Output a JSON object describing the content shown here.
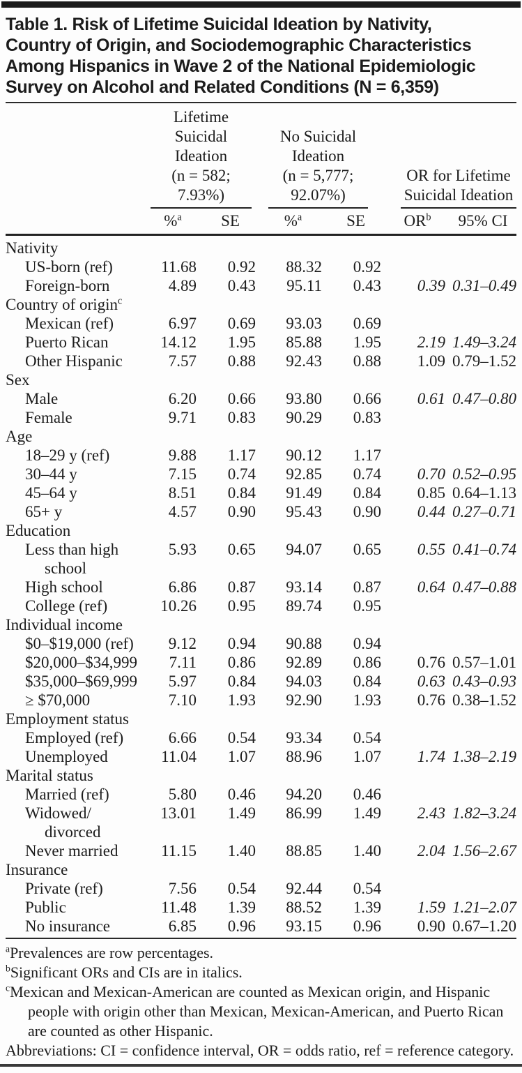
{
  "colors": {
    "ink": "#1c1c1c",
    "background": "#fdfdfd",
    "rule": "#2a2a2a"
  },
  "title": "Table 1. Risk of Lifetime Suicidal Ideation by Nativity,\nCountry of Origin, and Sociodemographic Characteristics\nAmong Hispanics in Wave 2 of the National Epidemiologic\nSurvey on Alcohol and Related Conditions (N = 6,359)",
  "header": {
    "group1": "Lifetime\nSuicidal\nIdeation\n(n = 582; 7.93%)",
    "group2": "No Suicidal\nIdeation\n(n = 5,777;\n92.07%)",
    "group3": "OR for Lifetime\nSuicidal Ideation",
    "subcols": [
      {
        "label": "%",
        "sup": "a"
      },
      {
        "label": "SE",
        "sup": ""
      },
      {
        "label": "%",
        "sup": "a"
      },
      {
        "label": "SE",
        "sup": ""
      },
      {
        "label": "OR",
        "sup": "b"
      },
      {
        "label": "95% CI",
        "sup": ""
      }
    ]
  },
  "rows": [
    {
      "type": "section",
      "label": "Nativity",
      "sup": ""
    },
    {
      "type": "data",
      "label": "US-born (ref)",
      "v": [
        "11.68",
        "0.92",
        "88.32",
        "0.92",
        "",
        ""
      ],
      "sig": false
    },
    {
      "type": "data",
      "label": "Foreign-born",
      "v": [
        "4.89",
        "0.43",
        "95.11",
        "0.43",
        "0.39",
        "0.31–0.49"
      ],
      "sig": true
    },
    {
      "type": "section",
      "label": "Country of origin",
      "sup": "c"
    },
    {
      "type": "data",
      "label": "Mexican (ref)",
      "v": [
        "6.97",
        "0.69",
        "93.03",
        "0.69",
        "",
        ""
      ],
      "sig": false
    },
    {
      "type": "data",
      "label": "Puerto Rican",
      "v": [
        "14.12",
        "1.95",
        "85.88",
        "1.95",
        "2.19",
        "1.49–3.24"
      ],
      "sig": true
    },
    {
      "type": "data",
      "label": "Other Hispanic",
      "v": [
        "7.57",
        "0.88",
        "92.43",
        "0.88",
        "1.09",
        "0.79–1.52"
      ],
      "sig": false
    },
    {
      "type": "section",
      "label": "Sex",
      "sup": ""
    },
    {
      "type": "data",
      "label": "Male",
      "v": [
        "6.20",
        "0.66",
        "93.80",
        "0.66",
        "0.61",
        "0.47–0.80"
      ],
      "sig": true
    },
    {
      "type": "data",
      "label": "Female",
      "v": [
        "9.71",
        "0.83",
        "90.29",
        "0.83",
        "",
        ""
      ],
      "sig": false
    },
    {
      "type": "section",
      "label": "Age",
      "sup": ""
    },
    {
      "type": "data",
      "label": "18–29 y (ref)",
      "v": [
        "9.88",
        "1.17",
        "90.12",
        "1.17",
        "",
        ""
      ],
      "sig": false
    },
    {
      "type": "data",
      "label": "30–44 y",
      "v": [
        "7.15",
        "0.74",
        "92.85",
        "0.74",
        "0.70",
        "0.52–0.95"
      ],
      "sig": true
    },
    {
      "type": "data",
      "label": "45–64 y",
      "v": [
        "8.51",
        "0.84",
        "91.49",
        "0.84",
        "0.85",
        "0.64–1.13"
      ],
      "sig": false
    },
    {
      "type": "data",
      "label": "65+ y",
      "v": [
        "4.57",
        "0.90",
        "95.43",
        "0.90",
        "0.44",
        "0.27–0.71"
      ],
      "sig": true
    },
    {
      "type": "section",
      "label": "Education",
      "sup": ""
    },
    {
      "type": "data",
      "label": "Less than high\nschool",
      "v": [
        "5.93",
        "0.65",
        "94.07",
        "0.65",
        "0.55",
        "0.41–0.74"
      ],
      "sig": true
    },
    {
      "type": "data",
      "label": "High school",
      "v": [
        "6.86",
        "0.87",
        "93.14",
        "0.87",
        "0.64",
        "0.47–0.88"
      ],
      "sig": true
    },
    {
      "type": "data",
      "label": "College (ref)",
      "v": [
        "10.26",
        "0.95",
        "89.74",
        "0.95",
        "",
        ""
      ],
      "sig": false
    },
    {
      "type": "section",
      "label": "Individual income",
      "sup": ""
    },
    {
      "type": "data",
      "label": "$0–$19,000 (ref)",
      "v": [
        "9.12",
        "0.94",
        "90.88",
        "0.94",
        "",
        ""
      ],
      "sig": false
    },
    {
      "type": "data",
      "label": "$20,000–$34,999",
      "v": [
        "7.11",
        "0.86",
        "92.89",
        "0.86",
        "0.76",
        "0.57–1.01"
      ],
      "sig": false
    },
    {
      "type": "data",
      "label": "$35,000–$69,999",
      "v": [
        "5.97",
        "0.84",
        "94.03",
        "0.84",
        "0.63",
        "0.43–0.93"
      ],
      "sig": true
    },
    {
      "type": "data",
      "label": "≥ $70,000",
      "v": [
        "7.10",
        "1.93",
        "92.90",
        "1.93",
        "0.76",
        "0.38–1.52"
      ],
      "sig": false
    },
    {
      "type": "section",
      "label": "Employment status",
      "sup": ""
    },
    {
      "type": "data",
      "label": "Employed (ref)",
      "v": [
        "6.66",
        "0.54",
        "93.34",
        "0.54",
        "",
        ""
      ],
      "sig": false
    },
    {
      "type": "data",
      "label": "Unemployed",
      "v": [
        "11.04",
        "1.07",
        "88.96",
        "1.07",
        "1.74",
        "1.38–2.19"
      ],
      "sig": true
    },
    {
      "type": "section",
      "label": "Marital status",
      "sup": ""
    },
    {
      "type": "data",
      "label": "Married (ref)",
      "v": [
        "5.80",
        "0.46",
        "94.20",
        "0.46",
        "",
        ""
      ],
      "sig": false
    },
    {
      "type": "data",
      "label": "Widowed/\ndivorced",
      "v": [
        "13.01",
        "1.49",
        "86.99",
        "1.49",
        "2.43",
        "1.82–3.24"
      ],
      "sig": true
    },
    {
      "type": "data",
      "label": "Never married",
      "v": [
        "11.15",
        "1.40",
        "88.85",
        "1.40",
        "2.04",
        "1.56–2.67"
      ],
      "sig": true
    },
    {
      "type": "section",
      "label": "Insurance",
      "sup": ""
    },
    {
      "type": "data",
      "label": "Private (ref)",
      "v": [
        "7.56",
        "0.54",
        "92.44",
        "0.54",
        "",
        ""
      ],
      "sig": false
    },
    {
      "type": "data",
      "label": "Public",
      "v": [
        "11.48",
        "1.39",
        "88.52",
        "1.39",
        "1.59",
        "1.21–2.07"
      ],
      "sig": true
    },
    {
      "type": "data",
      "label": "No insurance",
      "v": [
        "6.85",
        "0.96",
        "93.15",
        "0.96",
        "0.90",
        "0.67–1.20"
      ],
      "sig": false
    }
  ],
  "footnotes": [
    {
      "sup": "a",
      "text": "Prevalences are row percentages."
    },
    {
      "sup": "b",
      "text": "Significant ORs and CIs are in italics."
    },
    {
      "sup": "c",
      "text": "Mexican and Mexican-American are counted as Mexican origin, and Hispanic people with origin other than Mexican, Mexican-American, and Puerto Rican are counted as other Hispanic."
    },
    {
      "sup": "",
      "text": "Abbreviations: CI = confidence interval, OR = odds ratio, ref = reference category."
    }
  ]
}
